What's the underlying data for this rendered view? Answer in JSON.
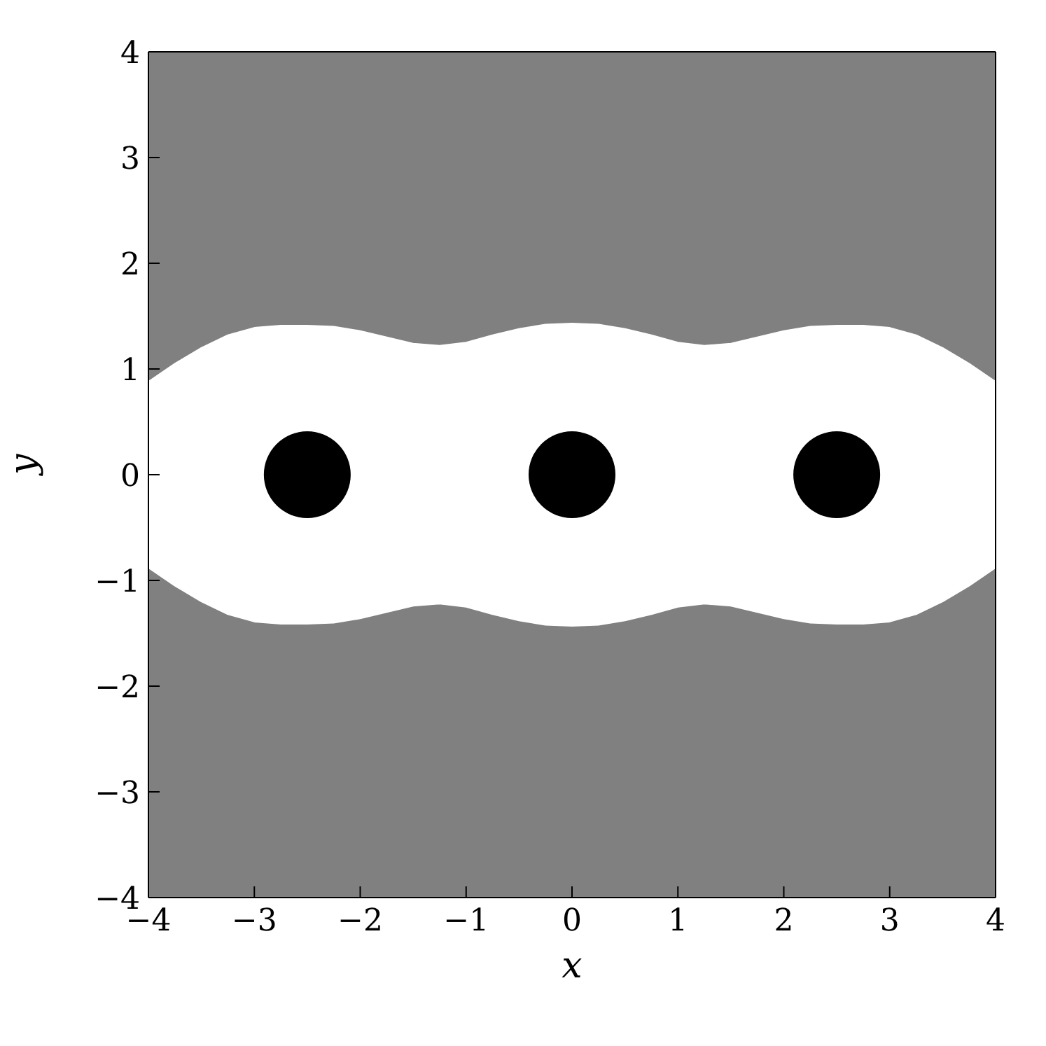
{
  "chart_data": {
    "type": "area",
    "xlabel": "x",
    "ylabel": "y",
    "xlim": [
      -4,
      4
    ],
    "ylim": [
      -4,
      4
    ],
    "xticks": [
      {
        "value": -4,
        "label": "−4"
      },
      {
        "value": -3,
        "label": "−3"
      },
      {
        "value": -2,
        "label": "−2"
      },
      {
        "value": -1,
        "label": "−1"
      },
      0,
      1,
      2,
      3,
      4
    ],
    "yticks": [
      {
        "value": -4,
        "label": "−4"
      },
      {
        "value": -3,
        "label": "−3"
      },
      {
        "value": -2,
        "label": "−2"
      },
      {
        "value": -1,
        "label": "−1"
      },
      0,
      1,
      2,
      3,
      4
    ],
    "x": [
      -4,
      -3.75,
      -3.5,
      -3.25,
      -3,
      -2.75,
      -2.5,
      -2.25,
      -2,
      -1.75,
      -1.5,
      -1.25,
      -1,
      -0.75,
      -0.5,
      -0.25,
      0,
      0.25,
      0.5,
      0.75,
      1,
      1.25,
      1.5,
      1.75,
      2,
      2.25,
      2.5,
      2.75,
      3,
      3.25,
      3.5,
      3.75,
      4
    ],
    "series": [
      {
        "color": "#ffffff",
        "values": [
          0.88,
          1.05,
          1.2,
          1.32,
          1.39,
          1.41,
          1.41,
          1.4,
          1.36,
          1.3,
          1.24,
          1.22,
          1.25,
          1.32,
          1.38,
          1.42,
          1.43,
          1.42,
          1.38,
          1.32,
          1.25,
          1.22,
          1.24,
          1.3,
          1.36,
          1.4,
          1.41,
          1.41,
          1.39,
          1.32,
          1.2,
          1.05,
          0.88
        ]
      },
      {
        "color": "#ffffff",
        "values": [
          -0.88,
          -1.05,
          -1.2,
          -1.32,
          -1.39,
          -1.41,
          -1.41,
          -1.4,
          -1.36,
          -1.3,
          -1.24,
          -1.22,
          -1.25,
          -1.32,
          -1.38,
          -1.42,
          -1.43,
          -1.42,
          -1.38,
          -1.32,
          -1.25,
          -1.22,
          -1.24,
          -1.3,
          -1.36,
          -1.4,
          -1.41,
          -1.41,
          -1.39,
          -1.32,
          -1.2,
          -1.05,
          -0.88
        ]
      },
      {
        "type": "bubble",
        "color": "#000000",
        "x": [
          -2.5,
          0,
          2.5
        ],
        "values": [
          0,
          0,
          0
        ],
        "sizes": [
          1,
          1,
          1
        ]
      }
    ]
  }
}
